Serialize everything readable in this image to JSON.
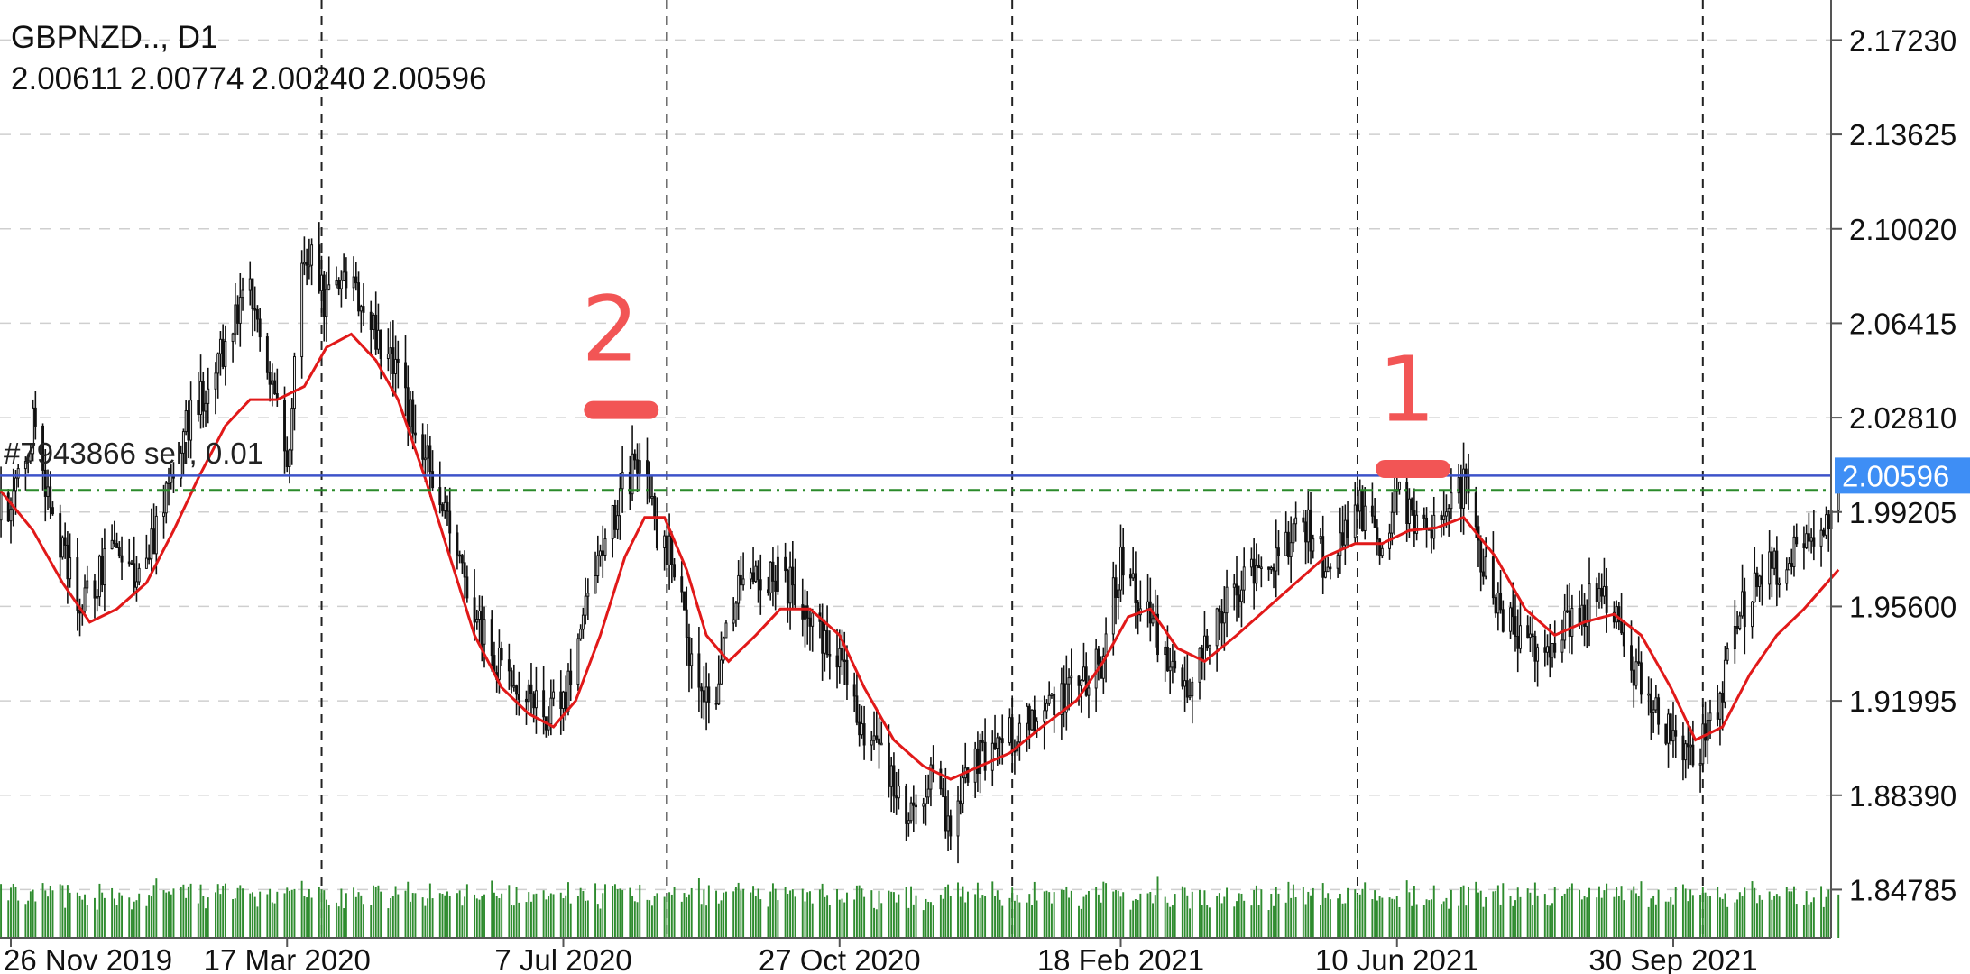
{
  "chart_data": {
    "type": "candlestick",
    "symbol": "GBPNZD..",
    "timeframe": "D1",
    "title_sep": ", ",
    "ohlc": {
      "open": "2.00611",
      "high": "2.00774",
      "low": "2.00240",
      "close": "2.00596"
    },
    "current_price": 2.00596,
    "current_price_label": "2.00596",
    "order_line": {
      "text": "#7943866 sell, 0.01",
      "price": 2.00596
    },
    "dashed_level": 2.0005,
    "price_range": [
      1.8294,
      2.1876
    ],
    "y_ticks": [
      {
        "value": 2.1723,
        "label": "2.17230"
      },
      {
        "value": 2.13625,
        "label": "2.13625"
      },
      {
        "value": 2.1002,
        "label": "2.10020"
      },
      {
        "value": 2.06415,
        "label": "2.06415"
      },
      {
        "value": 2.0281,
        "label": "2.02810"
      },
      {
        "value": 1.99205,
        "label": "1.99205"
      },
      {
        "value": 1.956,
        "label": "1.95600"
      },
      {
        "value": 1.91995,
        "label": "1.91995"
      },
      {
        "value": 1.8839,
        "label": "1.88390"
      },
      {
        "value": 1.84785,
        "label": "1.84785"
      }
    ],
    "x_ticks": [
      {
        "date": "2019-11-26",
        "label": "26 Nov 2019"
      },
      {
        "date": "2020-03-17",
        "label": "17 Mar 2020"
      },
      {
        "date": "2020-07-07",
        "label": "7 Jul 2020"
      },
      {
        "date": "2020-10-27",
        "label": "27 Oct 2020"
      },
      {
        "date": "2021-02-18",
        "label": "18 Feb 2021"
      },
      {
        "date": "2021-06-10",
        "label": "10 Jun 2021"
      },
      {
        "date": "2021-09-30",
        "label": "30 Sep 2021"
      }
    ],
    "series": [
      {
        "type": "candlestick",
        "price_path": [
          [
            "2019-11-12",
            2.005
          ],
          [
            "2019-11-26",
            1.99
          ],
          [
            "2019-12-05",
            2.025
          ],
          [
            "2019-12-14",
            1.985
          ],
          [
            "2019-12-24",
            1.955
          ],
          [
            "2020-01-04",
            1.975
          ],
          [
            "2020-01-15",
            1.965
          ],
          [
            "2020-01-24",
            1.985
          ],
          [
            "2020-02-03",
            2.02
          ],
          [
            "2020-02-13",
            2.04
          ],
          [
            "2020-02-22",
            2.06
          ],
          [
            "2020-03-02",
            2.08
          ],
          [
            "2020-03-10",
            2.04
          ],
          [
            "2020-03-17",
            2.01
          ],
          [
            "2020-03-24",
            2.095
          ],
          [
            "2020-04-02",
            2.07
          ],
          [
            "2020-04-12",
            2.08
          ],
          [
            "2020-04-21",
            2.06
          ],
          [
            "2020-04-30",
            2.045
          ],
          [
            "2020-05-10",
            2.02
          ],
          [
            "2020-05-20",
            1.99
          ],
          [
            "2020-05-30",
            1.955
          ],
          [
            "2020-06-10",
            1.935
          ],
          [
            "2020-06-20",
            1.92
          ],
          [
            "2020-07-01",
            1.915
          ],
          [
            "2020-07-10",
            1.925
          ],
          [
            "2020-07-20",
            1.975
          ],
          [
            "2020-07-31",
            2.0
          ],
          [
            "2020-08-08",
            2.015
          ],
          [
            "2020-08-13",
            1.985
          ],
          [
            "2020-08-20",
            1.975
          ],
          [
            "2020-08-28",
            1.935
          ],
          [
            "2020-09-05",
            1.915
          ],
          [
            "2020-09-12",
            1.955
          ],
          [
            "2020-09-20",
            1.965
          ],
          [
            "2020-10-02",
            1.97
          ],
          [
            "2020-10-13",
            1.955
          ],
          [
            "2020-10-27",
            1.935
          ],
          [
            "2020-11-06",
            1.91
          ],
          [
            "2020-11-15",
            1.895
          ],
          [
            "2020-11-24",
            1.875
          ],
          [
            "2020-12-03",
            1.89
          ],
          [
            "2020-12-12",
            1.87
          ],
          [
            "2020-12-19",
            1.895
          ],
          [
            "2021-01-01",
            1.905
          ],
          [
            "2021-01-15",
            1.915
          ],
          [
            "2021-02-01",
            1.925
          ],
          [
            "2021-02-10",
            1.935
          ],
          [
            "2021-02-18",
            1.975
          ],
          [
            "2021-02-26",
            1.955
          ],
          [
            "2021-03-10",
            1.935
          ],
          [
            "2021-03-18",
            1.925
          ],
          [
            "2021-03-28",
            1.955
          ],
          [
            "2021-04-09",
            1.965
          ],
          [
            "2021-04-21",
            1.975
          ],
          [
            "2021-05-03",
            1.99
          ],
          [
            "2021-05-13",
            1.97
          ],
          [
            "2021-05-25",
            1.995
          ],
          [
            "2021-06-04",
            1.98
          ],
          [
            "2021-06-10",
            2.0
          ],
          [
            "2021-06-20",
            1.985
          ],
          [
            "2021-06-30",
            1.99
          ],
          [
            "2021-07-07",
            2.002
          ],
          [
            "2021-07-14",
            1.975
          ],
          [
            "2021-07-22",
            1.955
          ],
          [
            "2021-08-01",
            1.94
          ],
          [
            "2021-08-12",
            1.945
          ],
          [
            "2021-08-24",
            1.955
          ],
          [
            "2021-09-02",
            1.96
          ],
          [
            "2021-09-13",
            1.935
          ],
          [
            "2021-09-22",
            1.92
          ],
          [
            "2021-09-30",
            1.905
          ],
          [
            "2021-10-08",
            1.895
          ],
          [
            "2021-10-18",
            1.92
          ],
          [
            "2021-10-28",
            1.955
          ],
          [
            "2021-11-08",
            1.97
          ],
          [
            "2021-11-19",
            1.975
          ],
          [
            "2021-11-29",
            1.985
          ],
          [
            "2021-12-06",
            2.005
          ]
        ]
      },
      {
        "type": "line",
        "indicator": "moving-average",
        "color": "#e11919",
        "path": [
          [
            "2019-11-12",
            2.005
          ],
          [
            "2019-11-22",
            2.0
          ],
          [
            "2019-12-05",
            1.985
          ],
          [
            "2019-12-17",
            1.965
          ],
          [
            "2019-12-28",
            1.95
          ],
          [
            "2020-01-08",
            1.955
          ],
          [
            "2020-01-20",
            1.965
          ],
          [
            "2020-01-31",
            1.985
          ],
          [
            "2020-02-10",
            2.005
          ],
          [
            "2020-02-21",
            2.025
          ],
          [
            "2020-03-02",
            2.035
          ],
          [
            "2020-03-13",
            2.035
          ],
          [
            "2020-03-24",
            2.04
          ],
          [
            "2020-04-02",
            2.055
          ],
          [
            "2020-04-12",
            2.06
          ],
          [
            "2020-04-22",
            2.05
          ],
          [
            "2020-05-01",
            2.035
          ],
          [
            "2020-05-12",
            2.005
          ],
          [
            "2020-05-22",
            1.975
          ],
          [
            "2020-06-01",
            1.945
          ],
          [
            "2020-06-12",
            1.925
          ],
          [
            "2020-06-23",
            1.915
          ],
          [
            "2020-07-03",
            1.91
          ],
          [
            "2020-07-12",
            1.92
          ],
          [
            "2020-07-22",
            1.945
          ],
          [
            "2020-08-01",
            1.975
          ],
          [
            "2020-08-09",
            1.99
          ],
          [
            "2020-08-17",
            1.99
          ],
          [
            "2020-08-26",
            1.97
          ],
          [
            "2020-09-03",
            1.945
          ],
          [
            "2020-09-12",
            1.935
          ],
          [
            "2020-09-23",
            1.945
          ],
          [
            "2020-10-03",
            1.955
          ],
          [
            "2020-10-15",
            1.955
          ],
          [
            "2020-10-27",
            1.945
          ],
          [
            "2020-11-06",
            1.925
          ],
          [
            "2020-11-18",
            1.905
          ],
          [
            "2020-11-30",
            1.895
          ],
          [
            "2020-12-11",
            1.89
          ],
          [
            "2020-12-23",
            1.895
          ],
          [
            "2021-01-04",
            1.9
          ],
          [
            "2021-01-17",
            1.91
          ],
          [
            "2021-01-31",
            1.92
          ],
          [
            "2021-02-11",
            1.935
          ],
          [
            "2021-02-21",
            1.952
          ],
          [
            "2021-03-02",
            1.955
          ],
          [
            "2021-03-13",
            1.94
          ],
          [
            "2021-03-24",
            1.935
          ],
          [
            "2021-04-06",
            1.945
          ],
          [
            "2021-04-18",
            1.955
          ],
          [
            "2021-04-30",
            1.965
          ],
          [
            "2021-05-12",
            1.975
          ],
          [
            "2021-05-24",
            1.98
          ],
          [
            "2021-06-04",
            1.98
          ],
          [
            "2021-06-15",
            1.985
          ],
          [
            "2021-06-26",
            1.986
          ],
          [
            "2021-07-07",
            1.99
          ],
          [
            "2021-07-20",
            1.975
          ],
          [
            "2021-08-01",
            1.955
          ],
          [
            "2021-08-13",
            1.945
          ],
          [
            "2021-08-25",
            1.95
          ],
          [
            "2021-09-06",
            1.953
          ],
          [
            "2021-09-17",
            1.945
          ],
          [
            "2021-09-29",
            1.925
          ],
          [
            "2021-10-09",
            1.905
          ],
          [
            "2021-10-20",
            1.91
          ],
          [
            "2021-10-31",
            1.93
          ],
          [
            "2021-11-11",
            1.945
          ],
          [
            "2021-11-22",
            1.955
          ],
          [
            "2021-12-06",
            1.97
          ]
        ]
      },
      {
        "type": "bar",
        "indicator": "volume",
        "color": "#2e8b2e"
      }
    ],
    "annotations": [
      {
        "text": "2",
        "date": "2020-07-26",
        "price": 2.05,
        "color": "#f25555"
      },
      {
        "text": "1",
        "date": "2021-06-14",
        "price": 2.027,
        "color": "#f25555"
      }
    ],
    "annotation_marks": [
      {
        "date_start": "2020-07-19",
        "date_end": "2020-08-11",
        "price": 2.031,
        "color": "#f25555"
      },
      {
        "date_start": "2021-06-05",
        "date_end": "2021-06-28",
        "price": 2.0085,
        "color": "#f25555"
      }
    ],
    "colors": {
      "candles": "#111111",
      "order_line": "#3d53c9",
      "dashed_level": "#2a8a2a",
      "price_badge": "#3e8ef5",
      "grid": "#cfcfcf",
      "axis": "#555555"
    }
  }
}
